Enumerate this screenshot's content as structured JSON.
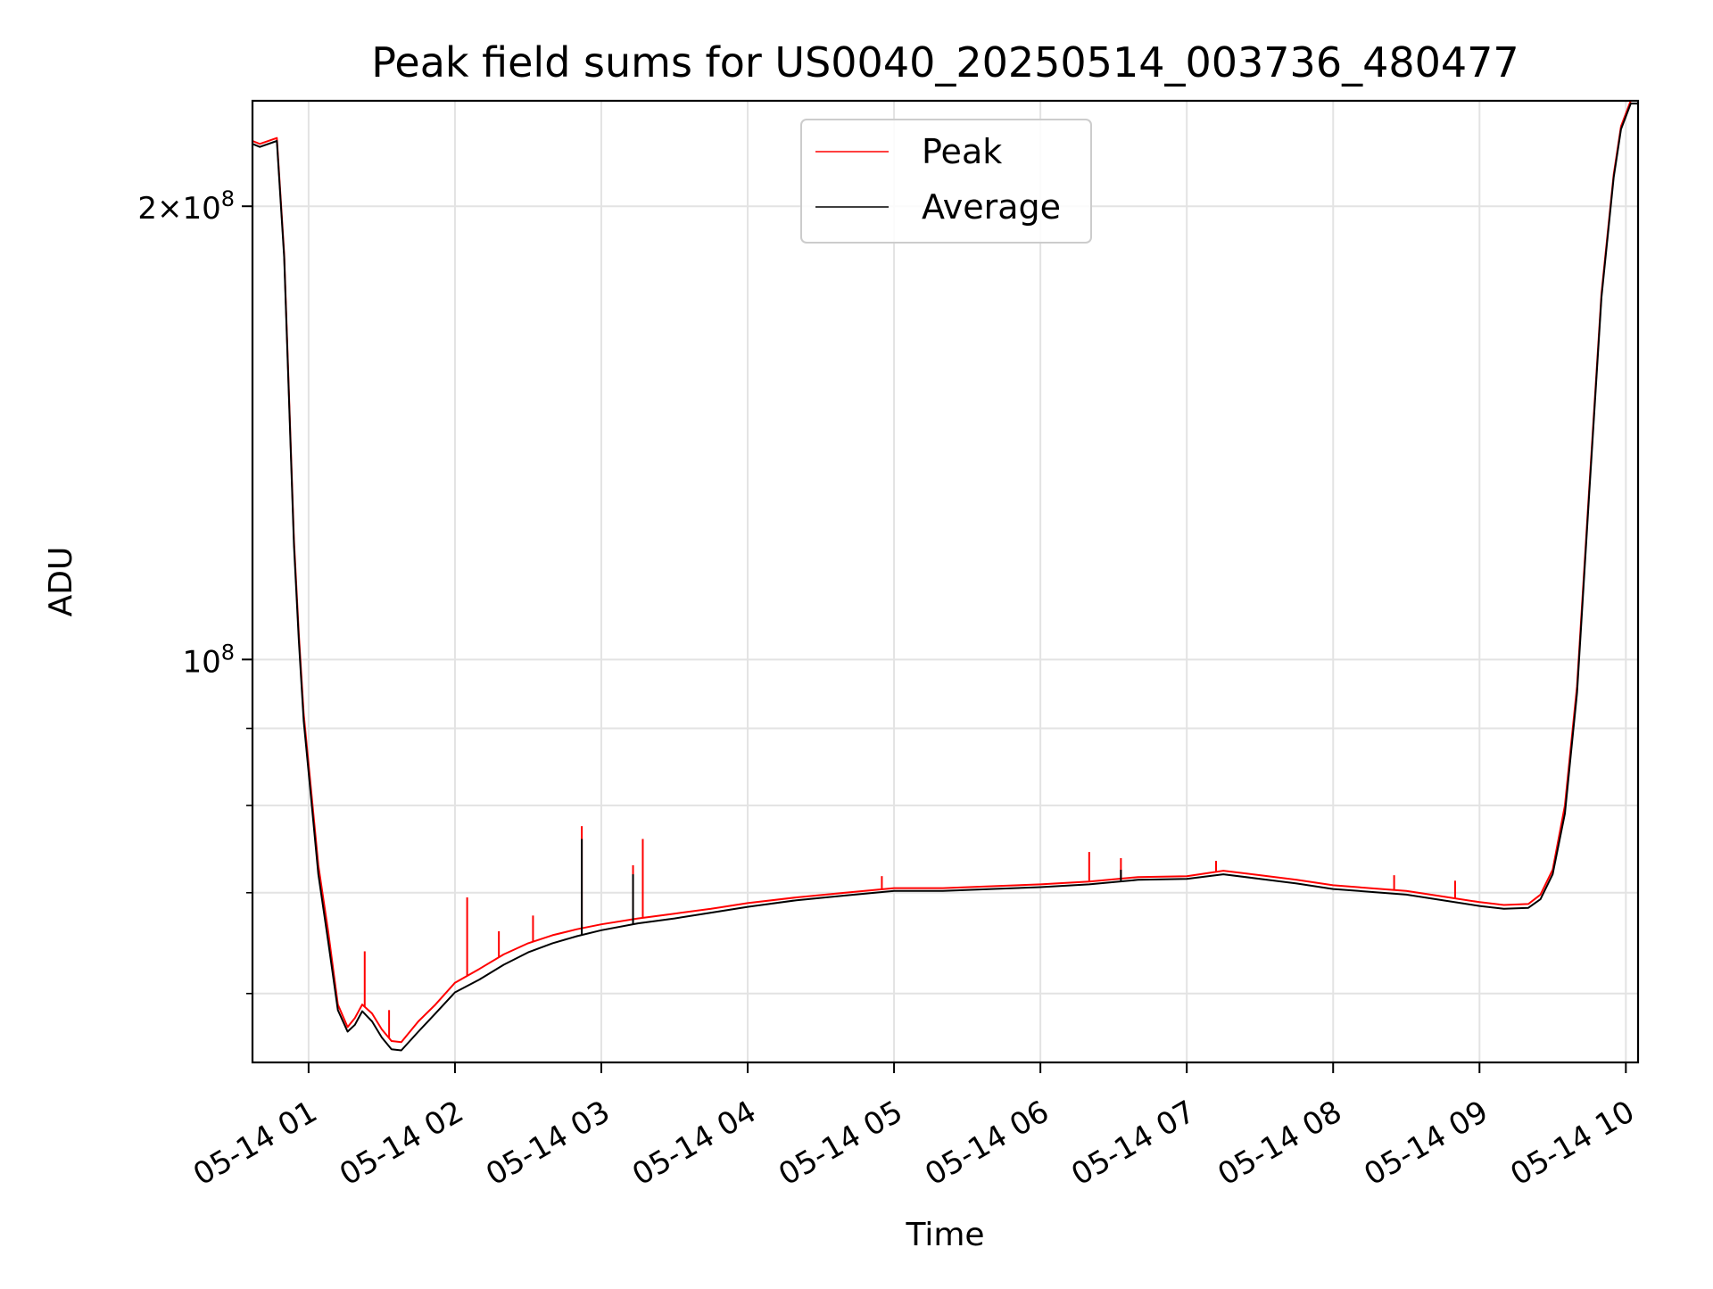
{
  "chart_data": {
    "type": "line",
    "title": "Peak field sums for US0040_20250514_003736_480477",
    "xlabel": "Time",
    "ylabel": "ADU",
    "y_scale": "log",
    "ylim": [
      54000000,
      235000000
    ],
    "xlim": [
      "2025-05-14 00:37",
      "2025-05-14 10:05"
    ],
    "grid": true,
    "legend_position": "upper center",
    "x_ticks": [
      {
        "t": "2025-05-14 01:00",
        "label": "05-14 01"
      },
      {
        "t": "2025-05-14 02:00",
        "label": "05-14 02"
      },
      {
        "t": "2025-05-14 03:00",
        "label": "05-14 03"
      },
      {
        "t": "2025-05-14 04:00",
        "label": "05-14 04"
      },
      {
        "t": "2025-05-14 05:00",
        "label": "05-14 05"
      },
      {
        "t": "2025-05-14 06:00",
        "label": "05-14 06"
      },
      {
        "t": "2025-05-14 07:00",
        "label": "05-14 07"
      },
      {
        "t": "2025-05-14 08:00",
        "label": "05-14 08"
      },
      {
        "t": "2025-05-14 09:00",
        "label": "05-14 09"
      },
      {
        "t": "2025-05-14 10:00",
        "label": "05-14 10"
      }
    ],
    "y_ticks_major": [
      {
        "value": 100000000,
        "base": "10",
        "exp": "8",
        "mantissa": ""
      },
      {
        "value": 200000000,
        "base": "10",
        "exp": "8",
        "mantissa": "2"
      }
    ],
    "y_ticks_minor": [
      60000000,
      70000000,
      80000000,
      90000000
    ],
    "series": [
      {
        "name": "Peak",
        "color": "#ff0000",
        "points": [
          [
            "2025-05-14 00:37",
            221000000
          ],
          [
            "2025-05-14 00:40",
            220000000
          ],
          [
            "2025-05-14 00:47",
            222000000
          ],
          [
            "2025-05-14 00:50",
            186000000
          ],
          [
            "2025-05-14 00:54",
            120000000
          ],
          [
            "2025-05-14 00:56",
            104000000
          ],
          [
            "2025-05-14 00:58",
            92000000
          ],
          [
            "2025-05-14 01:01",
            82000000
          ],
          [
            "2025-05-14 01:04",
            73000000
          ],
          [
            "2025-05-14 01:08",
            66000000
          ],
          [
            "2025-05-14 01:12",
            59000000
          ],
          [
            "2025-05-14 01:16",
            57000000
          ],
          [
            "2025-05-14 01:19",
            57800000
          ],
          [
            "2025-05-14 01:22",
            59000000
          ],
          [
            "2025-05-14 01:26",
            58200000
          ],
          [
            "2025-05-14 01:30",
            56800000
          ],
          [
            "2025-05-14 01:34",
            55800000
          ],
          [
            "2025-05-14 01:38",
            55700000
          ],
          [
            "2025-05-14 01:45",
            57500000
          ],
          [
            "2025-05-14 01:52",
            59000000
          ],
          [
            "2025-05-14 02:00",
            61000000
          ],
          [
            "2025-05-14 02:10",
            62300000
          ],
          [
            "2025-05-14 02:20",
            63700000
          ],
          [
            "2025-05-14 02:30",
            64800000
          ],
          [
            "2025-05-14 02:40",
            65600000
          ],
          [
            "2025-05-14 02:50",
            66200000
          ],
          [
            "2025-05-14 03:00",
            66700000
          ],
          [
            "2025-05-14 03:15",
            67300000
          ],
          [
            "2025-05-14 03:30",
            67800000
          ],
          [
            "2025-05-14 03:45",
            68300000
          ],
          [
            "2025-05-14 04:00",
            68900000
          ],
          [
            "2025-05-14 04:20",
            69500000
          ],
          [
            "2025-05-14 04:40",
            70000000
          ],
          [
            "2025-05-14 05:00",
            70500000
          ],
          [
            "2025-05-14 05:20",
            70500000
          ],
          [
            "2025-05-14 05:40",
            70700000
          ],
          [
            "2025-05-14 06:00",
            70900000
          ],
          [
            "2025-05-14 06:20",
            71200000
          ],
          [
            "2025-05-14 06:40",
            71700000
          ],
          [
            "2025-05-14 07:00",
            71800000
          ],
          [
            "2025-05-14 07:15",
            72400000
          ],
          [
            "2025-05-14 07:30",
            71900000
          ],
          [
            "2025-05-14 07:45",
            71400000
          ],
          [
            "2025-05-14 08:00",
            70800000
          ],
          [
            "2025-05-14 08:15",
            70500000
          ],
          [
            "2025-05-14 08:30",
            70200000
          ],
          [
            "2025-05-14 08:45",
            69600000
          ],
          [
            "2025-05-14 09:00",
            69000000
          ],
          [
            "2025-05-14 09:10",
            68700000
          ],
          [
            "2025-05-14 09:20",
            68800000
          ],
          [
            "2025-05-14 09:25",
            69800000
          ],
          [
            "2025-05-14 09:30",
            72500000
          ],
          [
            "2025-05-14 09:35",
            80000000
          ],
          [
            "2025-05-14 09:40",
            96000000
          ],
          [
            "2025-05-14 09:45",
            130000000
          ],
          [
            "2025-05-14 09:50",
            175000000
          ],
          [
            "2025-05-14 09:55",
            210000000
          ],
          [
            "2025-05-14 09:58",
            226000000
          ],
          [
            "2025-05-14 10:02",
            235000000
          ],
          [
            "2025-05-14 10:05",
            235000000
          ]
        ],
        "spikes": [
          [
            "2025-05-14 01:23",
            64000000
          ],
          [
            "2025-05-14 01:33",
            58500000
          ],
          [
            "2025-05-14 02:05",
            69500000
          ],
          [
            "2025-05-14 02:18",
            66000000
          ],
          [
            "2025-05-14 02:32",
            67600000
          ],
          [
            "2025-05-14 02:52",
            77500000
          ],
          [
            "2025-05-14 03:13",
            73000000
          ],
          [
            "2025-05-14 03:17",
            76000000
          ],
          [
            "2025-05-14 04:55",
            71800000
          ],
          [
            "2025-05-14 06:20",
            74500000
          ],
          [
            "2025-05-14 06:33",
            73800000
          ],
          [
            "2025-05-14 07:12",
            73500000
          ],
          [
            "2025-05-14 08:25",
            71900000
          ],
          [
            "2025-05-14 08:50",
            71300000
          ]
        ]
      },
      {
        "name": "Average",
        "color": "#000000",
        "points": [
          [
            "2025-05-14 00:37",
            220000000
          ],
          [
            "2025-05-14 00:40",
            219000000
          ],
          [
            "2025-05-14 00:47",
            221000000
          ],
          [
            "2025-05-14 00:50",
            185000000
          ],
          [
            "2025-05-14 00:54",
            119000000
          ],
          [
            "2025-05-14 00:56",
            103000000
          ],
          [
            "2025-05-14 00:58",
            91000000
          ],
          [
            "2025-05-14 01:01",
            81000000
          ],
          [
            "2025-05-14 01:04",
            72000000
          ],
          [
            "2025-05-14 01:08",
            65000000
          ],
          [
            "2025-05-14 01:12",
            58500000
          ],
          [
            "2025-05-14 01:16",
            56600000
          ],
          [
            "2025-05-14 01:19",
            57200000
          ],
          [
            "2025-05-14 01:22",
            58400000
          ],
          [
            "2025-05-14 01:26",
            57500000
          ],
          [
            "2025-05-14 01:30",
            56100000
          ],
          [
            "2025-05-14 01:34",
            55100000
          ],
          [
            "2025-05-14 01:38",
            55000000
          ],
          [
            "2025-05-14 01:45",
            56600000
          ],
          [
            "2025-05-14 01:52",
            58200000
          ],
          [
            "2025-05-14 02:00",
            60100000
          ],
          [
            "2025-05-14 02:10",
            61300000
          ],
          [
            "2025-05-14 02:20",
            62700000
          ],
          [
            "2025-05-14 02:30",
            63900000
          ],
          [
            "2025-05-14 02:40",
            64800000
          ],
          [
            "2025-05-14 02:50",
            65500000
          ],
          [
            "2025-05-14 03:00",
            66100000
          ],
          [
            "2025-05-14 03:15",
            66800000
          ],
          [
            "2025-05-14 03:30",
            67300000
          ],
          [
            "2025-05-14 03:45",
            67900000
          ],
          [
            "2025-05-14 04:00",
            68500000
          ],
          [
            "2025-05-14 04:20",
            69200000
          ],
          [
            "2025-05-14 04:40",
            69700000
          ],
          [
            "2025-05-14 05:00",
            70200000
          ],
          [
            "2025-05-14 05:20",
            70200000
          ],
          [
            "2025-05-14 05:40",
            70400000
          ],
          [
            "2025-05-14 06:00",
            70600000
          ],
          [
            "2025-05-14 06:20",
            70900000
          ],
          [
            "2025-05-14 06:40",
            71400000
          ],
          [
            "2025-05-14 07:00",
            71500000
          ],
          [
            "2025-05-14 07:15",
            72000000
          ],
          [
            "2025-05-14 07:30",
            71500000
          ],
          [
            "2025-05-14 07:45",
            71000000
          ],
          [
            "2025-05-14 08:00",
            70400000
          ],
          [
            "2025-05-14 08:15",
            70100000
          ],
          [
            "2025-05-14 08:30",
            69800000
          ],
          [
            "2025-05-14 08:45",
            69200000
          ],
          [
            "2025-05-14 09:00",
            68600000
          ],
          [
            "2025-05-14 09:10",
            68300000
          ],
          [
            "2025-05-14 09:20",
            68400000
          ],
          [
            "2025-05-14 09:25",
            69300000
          ],
          [
            "2025-05-14 09:30",
            72000000
          ],
          [
            "2025-05-14 09:35",
            79000000
          ],
          [
            "2025-05-14 09:40",
            95000000
          ],
          [
            "2025-05-14 09:45",
            129000000
          ],
          [
            "2025-05-14 09:50",
            174000000
          ],
          [
            "2025-05-14 09:55",
            209000000
          ],
          [
            "2025-05-14 09:58",
            225000000
          ],
          [
            "2025-05-14 10:02",
            234000000
          ],
          [
            "2025-05-14 10:05",
            234000000
          ]
        ],
        "spikes": [
          [
            "2025-05-14 02:52",
            76000000
          ],
          [
            "2025-05-14 03:13",
            72000000
          ],
          [
            "2025-05-14 06:33",
            72500000
          ]
        ]
      }
    ]
  }
}
